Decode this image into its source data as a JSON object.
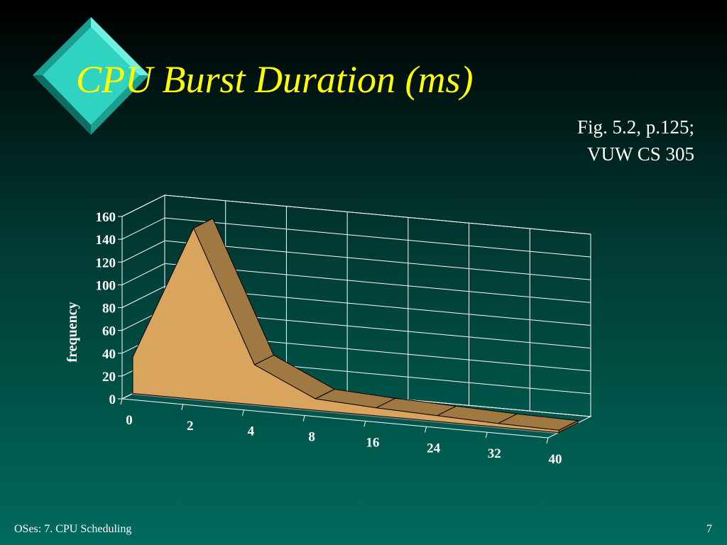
{
  "slide": {
    "title": "CPU Burst Duration (ms)",
    "note": [
      "Fig. 5.2, p.125;",
      "VUW CS 305"
    ],
    "footer": "OSes: 7. CPU Scheduling",
    "page_number": "7"
  },
  "chart_data": {
    "type": "area",
    "y_label": "frequency",
    "categories": [
      "0",
      "2",
      "4",
      "8",
      "16",
      "24",
      "32",
      "40"
    ],
    "values": [
      32,
      150,
      35,
      10,
      7,
      5,
      3,
      2
    ],
    "color": "#d9a45e",
    "ylim": [
      0,
      160
    ],
    "yticks": [
      0,
      20,
      40,
      60,
      80,
      100,
      120,
      140,
      160
    ],
    "grid": true
  }
}
